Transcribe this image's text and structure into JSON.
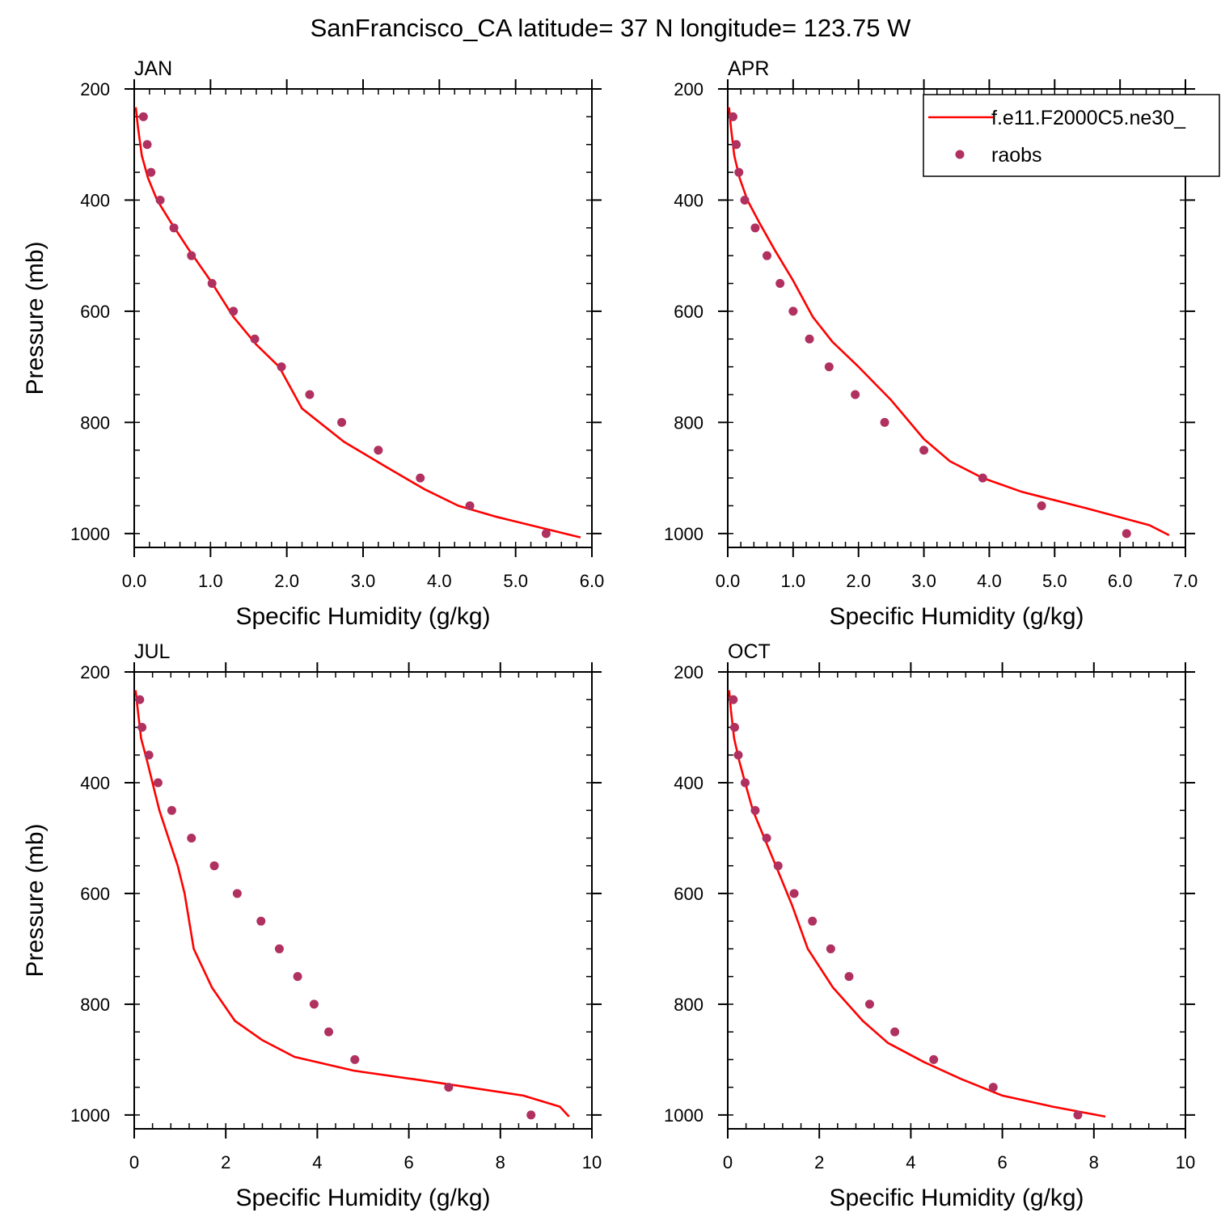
{
  "figure": {
    "title": "SanFrancisco_CA  latitude= 37 N longitude= 123.75 W"
  },
  "legend": {
    "model_label": "f.e11.F2000C5.ne30_",
    "obs_label": "raobs"
  },
  "colors": {
    "model_line": "#ff0000",
    "obs_marker": "#b03060",
    "axis": "#000000"
  },
  "chart_data": [
    {
      "type": "line",
      "panel": "JAN",
      "xlabel": "Specific Humidity (g/kg)",
      "ylabel": "Pressure (mb)",
      "xlim": [
        0,
        6.0
      ],
      "ylim": [
        1025,
        200
      ],
      "xticks": [
        "0.0",
        "1.0",
        "2.0",
        "3.0",
        "4.0",
        "5.0",
        "6.0"
      ],
      "xtick_values": [
        0,
        1,
        2,
        3,
        4,
        5,
        6
      ],
      "yticks": [
        "200",
        "400",
        "600",
        "800",
        "1000"
      ],
      "ytick_values": [
        200,
        400,
        600,
        800,
        1000
      ],
      "series": [
        {
          "name": "f.e11.F2000C5.ne30_",
          "kind": "line",
          "x": [
            0.02,
            0.05,
            0.1,
            0.18,
            0.3,
            0.48,
            0.72,
            1.0,
            1.3,
            1.6,
            1.9,
            2.2,
            2.75,
            3.3,
            3.8,
            4.25,
            4.75,
            5.85
          ],
          "y": [
            233,
            270,
            320,
            360,
            400,
            440,
            490,
            545,
            610,
            660,
            700,
            775,
            835,
            880,
            920,
            950,
            970,
            1007
          ]
        },
        {
          "name": "raobs",
          "kind": "scatter",
          "x": [
            0.12,
            0.17,
            0.22,
            0.34,
            0.52,
            0.75,
            1.02,
            1.3,
            1.58,
            1.93,
            2.3,
            2.72,
            3.2,
            3.75,
            4.4,
            5.4
          ],
          "y": [
            250,
            300,
            350,
            400,
            450,
            500,
            550,
            600,
            650,
            700,
            750,
            800,
            850,
            900,
            950,
            1000
          ]
        }
      ]
    },
    {
      "type": "line",
      "panel": "APR",
      "xlabel": "Specific Humidity (g/kg)",
      "ylabel": "",
      "xlim": [
        0,
        7.0
      ],
      "ylim": [
        1025,
        200
      ],
      "xticks": [
        "0.0",
        "1.0",
        "2.0",
        "3.0",
        "4.0",
        "5.0",
        "6.0",
        "7.0"
      ],
      "xtick_values": [
        0,
        1,
        2,
        3,
        4,
        5,
        6,
        7
      ],
      "yticks": [
        "200",
        "400",
        "600",
        "800",
        "1000"
      ],
      "ytick_values": [
        200,
        400,
        600,
        800,
        1000
      ],
      "series": [
        {
          "name": "f.e11.F2000C5.ne30_",
          "kind": "line",
          "x": [
            0.02,
            0.05,
            0.1,
            0.18,
            0.3,
            0.48,
            0.72,
            1.0,
            1.3,
            1.6,
            2.0,
            2.5,
            3.0,
            3.4,
            3.9,
            4.5,
            5.5,
            6.45,
            6.75
          ],
          "y": [
            233,
            270,
            320,
            360,
            400,
            440,
            490,
            545,
            610,
            655,
            700,
            760,
            830,
            870,
            900,
            925,
            955,
            985,
            1003
          ]
        },
        {
          "name": "raobs",
          "kind": "scatter",
          "x": [
            0.08,
            0.13,
            0.17,
            0.26,
            0.42,
            0.6,
            0.8,
            1.0,
            1.25,
            1.55,
            1.95,
            2.4,
            3.0,
            3.9,
            4.8,
            6.1
          ],
          "y": [
            250,
            300,
            350,
            400,
            450,
            500,
            550,
            600,
            650,
            700,
            750,
            800,
            850,
            900,
            950,
            1000
          ]
        }
      ]
    },
    {
      "type": "line",
      "panel": "JUL",
      "xlabel": "Specific Humidity (g/kg)",
      "ylabel": "Pressure (mb)",
      "xlim": [
        0,
        10
      ],
      "ylim": [
        1025,
        200
      ],
      "xticks": [
        "0",
        "2",
        "4",
        "6",
        "8",
        "10"
      ],
      "xtick_values": [
        0,
        2,
        4,
        6,
        8,
        10
      ],
      "yticks": [
        "200",
        "400",
        "600",
        "800",
        "1000"
      ],
      "ytick_values": [
        200,
        400,
        600,
        800,
        1000
      ],
      "series": [
        {
          "name": "f.e11.F2000C5.ne30_",
          "kind": "line",
          "x": [
            0.03,
            0.08,
            0.15,
            0.28,
            0.4,
            0.55,
            0.75,
            0.95,
            1.1,
            1.3,
            1.7,
            2.2,
            2.8,
            3.5,
            4.8,
            6.5,
            8.5,
            9.3,
            9.5
          ],
          "y": [
            233,
            270,
            320,
            360,
            400,
            450,
            500,
            550,
            600,
            700,
            770,
            830,
            865,
            895,
            920,
            940,
            965,
            985,
            1003
          ]
        },
        {
          "name": "raobs",
          "kind": "scatter",
          "x": [
            0.12,
            0.17,
            0.32,
            0.52,
            0.82,
            1.25,
            1.75,
            2.25,
            2.77,
            3.17,
            3.57,
            3.93,
            4.25,
            4.82,
            6.87,
            8.67
          ],
          "y": [
            250,
            300,
            350,
            400,
            450,
            500,
            550,
            600,
            650,
            700,
            750,
            800,
            850,
            900,
            950,
            1000
          ]
        }
      ]
    },
    {
      "type": "line",
      "panel": "OCT",
      "xlabel": "Specific Humidity (g/kg)",
      "ylabel": "",
      "xlim": [
        0,
        10
      ],
      "ylim": [
        1025,
        200
      ],
      "xticks": [
        "0",
        "2",
        "4",
        "6",
        "8",
        "10"
      ],
      "xtick_values": [
        0,
        2,
        4,
        6,
        8,
        10
      ],
      "yticks": [
        "200",
        "400",
        "600",
        "800",
        "1000"
      ],
      "ytick_values": [
        200,
        400,
        600,
        800,
        1000
      ],
      "series": [
        {
          "name": "f.e11.F2000C5.ne30_",
          "kind": "line",
          "x": [
            0.03,
            0.07,
            0.14,
            0.25,
            0.38,
            0.55,
            0.8,
            1.1,
            1.4,
            1.75,
            2.3,
            2.95,
            3.5,
            4.3,
            5.1,
            6.0,
            7.1,
            8.25
          ],
          "y": [
            233,
            270,
            320,
            360,
            400,
            450,
            500,
            560,
            620,
            700,
            770,
            830,
            870,
            905,
            935,
            965,
            985,
            1003
          ]
        },
        {
          "name": "raobs",
          "kind": "scatter",
          "x": [
            0.12,
            0.15,
            0.23,
            0.38,
            0.6,
            0.85,
            1.1,
            1.45,
            1.85,
            2.25,
            2.65,
            3.1,
            3.65,
            4.5,
            5.8,
            7.65
          ],
          "y": [
            250,
            300,
            350,
            400,
            450,
            500,
            550,
            600,
            650,
            700,
            750,
            800,
            850,
            900,
            950,
            1000
          ]
        }
      ]
    }
  ]
}
